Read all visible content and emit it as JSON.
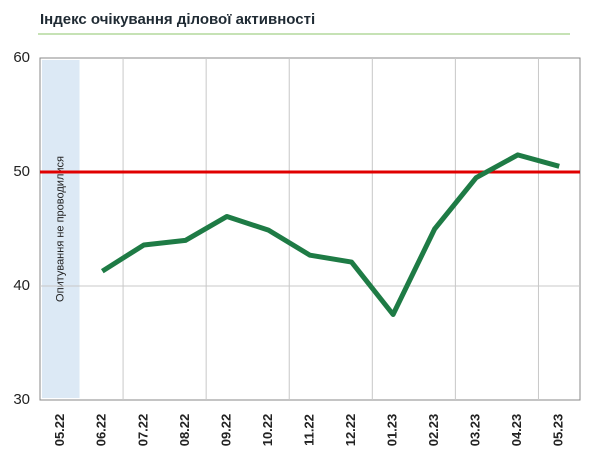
{
  "chart_data": {
    "type": "line",
    "title": "Індекс очікування ділової активності",
    "categories": [
      "05.22",
      "06.22",
      "07.22",
      "08.22",
      "09.22",
      "10.22",
      "11.22",
      "12.22",
      "01.23",
      "02.23",
      "03.23",
      "04.23",
      "05.23"
    ],
    "series": [
      {
        "name": "Індекс очікування ділової активності",
        "color": "#1e7b45",
        "values": [
          null,
          41.3,
          43.6,
          44.0,
          46.1,
          44.9,
          42.7,
          42.1,
          37.5,
          45.0,
          49.5,
          51.5,
          50.5
        ]
      }
    ],
    "ylim": [
      30,
      60
    ],
    "yticks": [
      30,
      40,
      50,
      60
    ],
    "grid": true,
    "reference_line": {
      "value": 50,
      "color": "#e00000"
    },
    "annotation": "Опитування  не проводилися"
  }
}
